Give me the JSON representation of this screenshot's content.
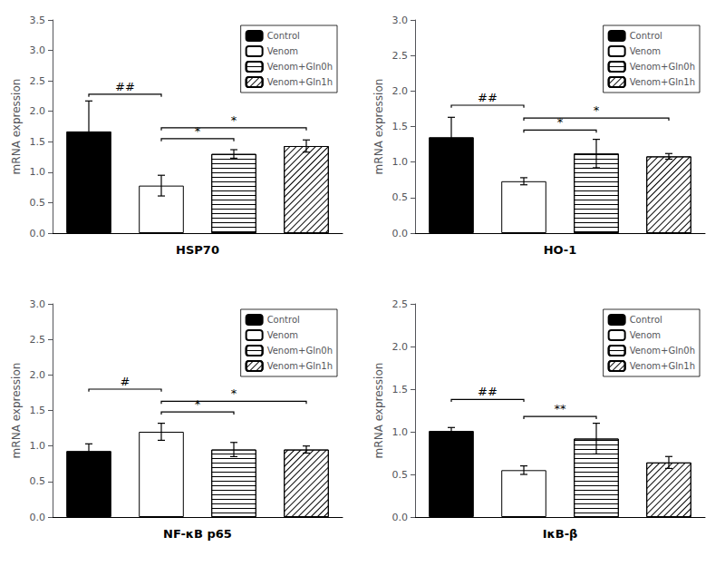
{
  "chart_data": [
    {
      "type": "bar",
      "xlabel": "HSP70",
      "ylabel": "mRNA expression",
      "categories": [
        "Control",
        "Venom",
        "Venom+Gln0h",
        "Venom+Gln1h"
      ],
      "values": [
        1.67,
        0.78,
        1.3,
        1.43
      ],
      "errors": [
        0.5,
        0.17,
        0.07,
        0.1
      ],
      "colors": [
        "#000000",
        "#ffffff",
        "#ffffff",
        "#ffffff"
      ],
      "ylim": [
        0.0,
        3.5
      ],
      "yticks": [
        {
          "value": 0.0,
          "label": "0.0"
        },
        {
          "value": 0.5,
          "label": "0.5"
        },
        {
          "value": 1.0,
          "label": "1.0"
        },
        {
          "value": 1.5,
          "label": "1.5"
        },
        {
          "value": 2.0,
          "label": "2.0"
        },
        {
          "value": 2.5,
          "label": "2.5"
        },
        {
          "value": 3.0,
          "label": "3.0"
        },
        {
          "value": 3.5,
          "label": "3.5"
        }
      ],
      "annotations": [
        {
          "from": "Control",
          "to": "Venom",
          "y": 2.28,
          "label": "##"
        },
        {
          "from": "Venom",
          "to": "Venom+Gln0h",
          "y": 1.55,
          "label": "*"
        },
        {
          "from": "Venom",
          "to": "Venom+Gln1h",
          "y": 1.73,
          "label": "*"
        }
      ],
      "legend": "upper right",
      "grid": false,
      "tick_labels": "y"
    },
    {
      "type": "bar",
      "xlabel": "HO-1",
      "ylabel": "mRNA expression",
      "categories": [
        "Control",
        "Venom",
        "Venom+Gln0h",
        "Venom+Gln1h"
      ],
      "values": [
        1.35,
        0.73,
        1.12,
        1.08
      ],
      "errors": [
        0.28,
        0.05,
        0.2,
        0.04
      ],
      "colors": [
        "#000000",
        "#ffffff",
        "#ffffff",
        "#ffffff"
      ],
      "ylim": [
        0.0,
        3.0
      ],
      "yticks": [
        {
          "value": 0.0,
          "label": "0.0"
        },
        {
          "value": 0.5,
          "label": "0.5"
        },
        {
          "value": 1.0,
          "label": "1.0"
        },
        {
          "value": 1.5,
          "label": "1.5"
        },
        {
          "value": 2.0,
          "label": "2.0"
        },
        {
          "value": 2.5,
          "label": "2.5"
        },
        {
          "value": 3.0,
          "label": "3.0"
        }
      ],
      "annotations": [
        {
          "from": "Control",
          "to": "Venom",
          "y": 1.8,
          "label": "##"
        },
        {
          "from": "Venom",
          "to": "Venom+Gln0h",
          "y": 1.45,
          "label": "*"
        },
        {
          "from": "Venom",
          "to": "Venom+Gln1h",
          "y": 1.62,
          "label": "*"
        }
      ],
      "legend": "upper right",
      "grid": false,
      "tick_labels": "y"
    },
    {
      "type": "bar",
      "xlabel": "NF-κB p65",
      "ylabel": "mRNA expression",
      "categories": [
        "Control",
        "Venom",
        "Venom+Gln0h",
        "Venom+Gln1h"
      ],
      "values": [
        0.93,
        1.2,
        0.95,
        0.95
      ],
      "errors": [
        0.1,
        0.12,
        0.1,
        0.05
      ],
      "colors": [
        "#000000",
        "#ffffff",
        "#ffffff",
        "#ffffff"
      ],
      "ylim": [
        0.0,
        3.0
      ],
      "yticks": [
        {
          "value": 0.0,
          "label": "0.0"
        },
        {
          "value": 0.5,
          "label": "0.5"
        },
        {
          "value": 1.0,
          "label": "1.0"
        },
        {
          "value": 1.5,
          "label": "1.5"
        },
        {
          "value": 2.0,
          "label": "2.0"
        },
        {
          "value": 2.5,
          "label": "2.5"
        },
        {
          "value": 3.0,
          "label": "3.0"
        }
      ],
      "annotations": [
        {
          "from": "Control",
          "to": "Venom",
          "y": 1.8,
          "label": "#"
        },
        {
          "from": "Venom",
          "to": "Venom+Gln0h",
          "y": 1.48,
          "label": "*"
        },
        {
          "from": "Venom",
          "to": "Venom+Gln1h",
          "y": 1.63,
          "label": "*"
        }
      ],
      "legend": "upper right",
      "grid": false,
      "tick_labels": "y"
    },
    {
      "type": "bar",
      "xlabel": "IκB-β",
      "ylabel": "mRNA expression",
      "categories": [
        "Control",
        "Venom",
        "Venom+Gln0h",
        "Venom+Gln1h"
      ],
      "values": [
        1.01,
        0.55,
        0.92,
        0.64
      ],
      "errors": [
        0.04,
        0.05,
        0.18,
        0.07
      ],
      "colors": [
        "#000000",
        "#ffffff",
        "#ffffff",
        "#ffffff"
      ],
      "ylim": [
        0.0,
        2.5
      ],
      "yticks": [
        {
          "value": 0.0,
          "label": "0.0"
        },
        {
          "value": 0.5,
          "label": "0.5"
        },
        {
          "value": 1.0,
          "label": "1.0"
        },
        {
          "value": 1.5,
          "label": "1.5"
        },
        {
          "value": 2.0,
          "label": "2.0"
        },
        {
          "value": 2.5,
          "label": "2.5"
        }
      ],
      "annotations": [
        {
          "from": "Control",
          "to": "Venom",
          "y": 1.38,
          "label": "##"
        },
        {
          "from": "Venom",
          "to": "Venom+Gln0h",
          "y": 1.18,
          "label": "**"
        }
      ],
      "legend": "upper right",
      "grid": false,
      "tick_labels": "y"
    }
  ]
}
